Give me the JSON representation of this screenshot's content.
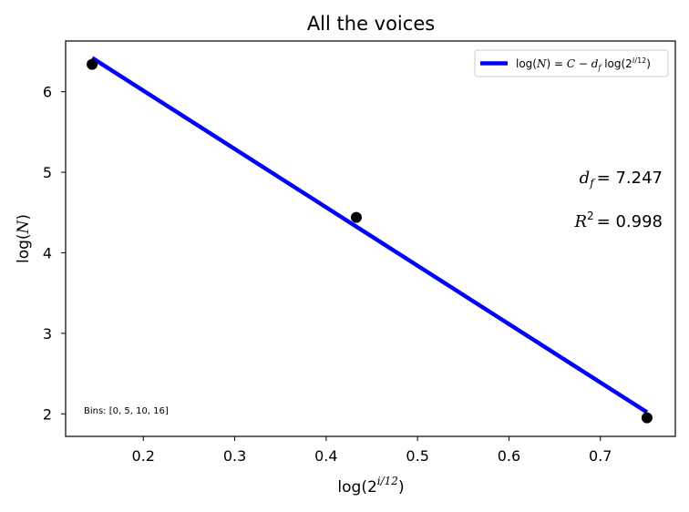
{
  "chart_data": {
    "type": "scatter",
    "title": "All the voices",
    "xlabel": {
      "base": "log(2",
      "sup": "i/12",
      "tail": ")"
    },
    "ylabel": {
      "pre": "log(",
      "var": "N",
      "post": ")"
    },
    "xlim": [
      0.115,
      0.782
    ],
    "ylim": [
      1.72,
      6.63
    ],
    "x_ticks": [
      0.2,
      0.3,
      0.4,
      0.5,
      0.6,
      0.7
    ],
    "y_ticks": [
      2,
      3,
      4,
      5,
      6
    ],
    "x_tick_labels": [
      "0.2",
      "0.3",
      "0.4",
      "0.5",
      "0.6",
      "0.7"
    ],
    "y_tick_labels": [
      "2",
      "3",
      "4",
      "5",
      "6"
    ],
    "points": {
      "color": "#000000",
      "x": [
        0.144,
        0.433,
        0.751
      ],
      "y": [
        6.34,
        4.44,
        1.95
      ]
    },
    "fit_line": {
      "color": "#0000ff",
      "x": [
        0.144,
        0.751
      ],
      "y": [
        6.42,
        2.02
      ],
      "legend_label": "log(N) = C − d_f log(2^(i/12))"
    },
    "legend_location": "upper right",
    "annotations": {
      "df_label": "d",
      "df_sub": "f",
      "df_value": "= 7.247",
      "r2_label": "R",
      "r2_sup": "2",
      "r2_value": "= 0.998",
      "bins": "Bins: [0, 5, 10, 16]"
    },
    "grid": false
  }
}
